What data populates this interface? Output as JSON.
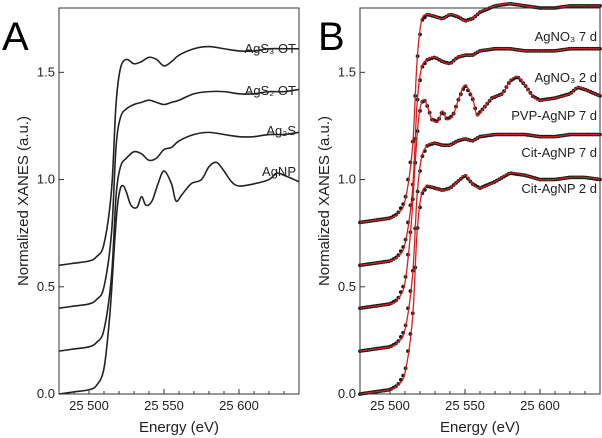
{
  "chart_data": [
    {
      "type": "line",
      "panel_label": "A",
      "xlabel": "Energy (eV)",
      "ylabel": "Normalized XANES (a.u.)",
      "xlim": [
        25480,
        25640
      ],
      "ylim": [
        0,
        1.8
      ],
      "xticks": [
        25500,
        25550,
        25600
      ],
      "xtick_labels": [
        "25 500",
        "25 550",
        "25 600"
      ],
      "yticks": [
        0.0,
        0.5,
        1.0,
        1.5
      ],
      "ytick_labels": [
        "0.0",
        "0.5",
        "1.0",
        "1.5"
      ],
      "grid": false,
      "series": [
        {
          "name": "AgS₃ OT",
          "color": "#222222",
          "x": [
            25480,
            25490,
            25500,
            25505,
            25510,
            25515,
            25518,
            25521,
            25525,
            25530,
            25535,
            25540,
            25545,
            25550,
            25555,
            25560,
            25570,
            25580,
            25590,
            25600,
            25610,
            25620,
            25630,
            25640
          ],
          "y": [
            0.6,
            0.61,
            0.62,
            0.64,
            0.7,
            0.95,
            1.35,
            1.52,
            1.56,
            1.54,
            1.55,
            1.57,
            1.56,
            1.53,
            1.55,
            1.58,
            1.61,
            1.62,
            1.61,
            1.6,
            1.6,
            1.61,
            1.61,
            1.61
          ]
        },
        {
          "name": "AgS₂ OT",
          "color": "#222222",
          "x": [
            25480,
            25490,
            25500,
            25505,
            25510,
            25515,
            25518,
            25521,
            25525,
            25530,
            25535,
            25540,
            25545,
            25550,
            25555,
            25560,
            25570,
            25580,
            25590,
            25600,
            25610,
            25620,
            25630,
            25640
          ],
          "y": [
            0.4,
            0.41,
            0.42,
            0.44,
            0.5,
            0.75,
            1.15,
            1.29,
            1.33,
            1.35,
            1.36,
            1.37,
            1.36,
            1.35,
            1.36,
            1.37,
            1.4,
            1.41,
            1.41,
            1.4,
            1.4,
            1.41,
            1.41,
            1.42
          ]
        },
        {
          "name": "Ag₂S",
          "color": "#222222",
          "x": [
            25480,
            25490,
            25500,
            25505,
            25510,
            25515,
            25518,
            25521,
            25525,
            25530,
            25535,
            25540,
            25545,
            25550,
            25555,
            25560,
            25570,
            25580,
            25590,
            25600,
            25610,
            25620,
            25630,
            25640
          ],
          "y": [
            0.2,
            0.21,
            0.22,
            0.24,
            0.3,
            0.55,
            0.92,
            1.06,
            1.1,
            1.13,
            1.12,
            1.09,
            1.1,
            1.14,
            1.15,
            1.18,
            1.21,
            1.22,
            1.21,
            1.2,
            1.2,
            1.21,
            1.21,
            1.22
          ]
        },
        {
          "name": "AgNP",
          "color": "#222222",
          "x": [
            25480,
            25490,
            25500,
            25505,
            25510,
            25514,
            25517,
            25519,
            25521,
            25523,
            25525,
            25528,
            25532,
            25535,
            25538,
            25542,
            25546,
            25550,
            25555,
            25558,
            25562,
            25568,
            25575,
            25580,
            25585,
            25590,
            25595,
            25600,
            25610,
            25620,
            25625,
            25630,
            25640
          ],
          "y": [
            0.0,
            0.01,
            0.02,
            0.04,
            0.12,
            0.38,
            0.7,
            0.88,
            0.96,
            0.97,
            0.94,
            0.88,
            0.87,
            0.92,
            0.88,
            0.9,
            0.98,
            1.04,
            0.98,
            0.9,
            0.93,
            0.98,
            1.0,
            1.06,
            1.08,
            1.04,
            0.99,
            0.97,
            0.98,
            1.0,
            1.03,
            1.02,
            0.99
          ]
        }
      ]
    },
    {
      "type": "line",
      "panel_label": "B",
      "xlabel": "Energy (eV)",
      "ylabel": "Normalized XANES (a.u.)",
      "xlim": [
        25480,
        25640
      ],
      "ylim": [
        0,
        1.8
      ],
      "xticks": [
        25500,
        25550,
        25600
      ],
      "xtick_labels": [
        "25 500",
        "25 550",
        "25 600"
      ],
      "yticks": [
        0.0,
        0.5,
        1.0,
        1.5
      ],
      "ytick_labels": [
        "0.0",
        "0.5",
        "1.0",
        "1.5"
      ],
      "grid": false,
      "style": "black markers (data) with red fitted line",
      "data_color": "#1a1a1a",
      "fit_color": "#d42020",
      "series": [
        {
          "name": "AgNO₃ 7 d",
          "x": [
            25480,
            25490,
            25500,
            25505,
            25510,
            25515,
            25518,
            25521,
            25525,
            25530,
            25535,
            25540,
            25545,
            25550,
            25555,
            25560,
            25570,
            25580,
            25590,
            25600,
            25610,
            25620,
            25630,
            25640
          ],
          "y": [
            0.8,
            0.81,
            0.82,
            0.84,
            0.9,
            1.15,
            1.55,
            1.74,
            1.77,
            1.76,
            1.75,
            1.77,
            1.76,
            1.74,
            1.75,
            1.78,
            1.81,
            1.82,
            1.81,
            1.8,
            1.8,
            1.81,
            1.81,
            1.81
          ]
        },
        {
          "name": "AgNO₃ 2 d",
          "x": [
            25480,
            25490,
            25500,
            25505,
            25510,
            25515,
            25518,
            25521,
            25525,
            25530,
            25535,
            25540,
            25545,
            25550,
            25555,
            25560,
            25570,
            25580,
            25590,
            25600,
            25610,
            25620,
            25630,
            25640
          ],
          "y": [
            0.6,
            0.61,
            0.62,
            0.64,
            0.7,
            0.95,
            1.35,
            1.52,
            1.56,
            1.57,
            1.55,
            1.54,
            1.57,
            1.58,
            1.58,
            1.6,
            1.61,
            1.61,
            1.6,
            1.6,
            1.6,
            1.61,
            1.61,
            1.61
          ]
        },
        {
          "name": "PVP-AgNP 7 d",
          "x": [
            25480,
            25490,
            25500,
            25505,
            25510,
            25514,
            25517,
            25519,
            25521,
            25523,
            25525,
            25528,
            25532,
            25535,
            25538,
            25542,
            25546,
            25550,
            25555,
            25558,
            25562,
            25568,
            25575,
            25580,
            25585,
            25590,
            25595,
            25600,
            25610,
            25620,
            25625,
            25630,
            25640
          ],
          "y": [
            0.4,
            0.41,
            0.42,
            0.44,
            0.52,
            0.78,
            1.1,
            1.28,
            1.36,
            1.37,
            1.34,
            1.28,
            1.27,
            1.32,
            1.28,
            1.3,
            1.38,
            1.44,
            1.38,
            1.3,
            1.33,
            1.38,
            1.4,
            1.46,
            1.48,
            1.44,
            1.39,
            1.37,
            1.38,
            1.4,
            1.43,
            1.42,
            1.39
          ]
        },
        {
          "name": "Cit-AgNP 7 d",
          "x": [
            25480,
            25490,
            25500,
            25505,
            25510,
            25515,
            25518,
            25521,
            25525,
            25530,
            25535,
            25540,
            25545,
            25550,
            25555,
            25560,
            25570,
            25580,
            25590,
            25600,
            25610,
            25620,
            25630,
            25640
          ],
          "y": [
            0.2,
            0.21,
            0.22,
            0.24,
            0.3,
            0.55,
            0.92,
            1.1,
            1.16,
            1.17,
            1.16,
            1.16,
            1.18,
            1.19,
            1.18,
            1.2,
            1.21,
            1.21,
            1.21,
            1.2,
            1.2,
            1.21,
            1.21,
            1.21
          ]
        },
        {
          "name": "Cit-AgNP 2 d",
          "x": [
            25480,
            25490,
            25500,
            25505,
            25510,
            25515,
            25518,
            25521,
            25525,
            25530,
            25535,
            25540,
            25545,
            25550,
            25555,
            25560,
            25570,
            25580,
            25590,
            25600,
            25610,
            25620,
            25630,
            25640
          ],
          "y": [
            0.0,
            0.01,
            0.02,
            0.04,
            0.1,
            0.35,
            0.75,
            0.93,
            0.97,
            0.96,
            0.95,
            0.96,
            0.99,
            1.02,
            0.98,
            0.96,
            0.99,
            1.03,
            1.02,
            1.0,
            1.0,
            1.01,
            1.01,
            1.0
          ]
        }
      ]
    }
  ]
}
